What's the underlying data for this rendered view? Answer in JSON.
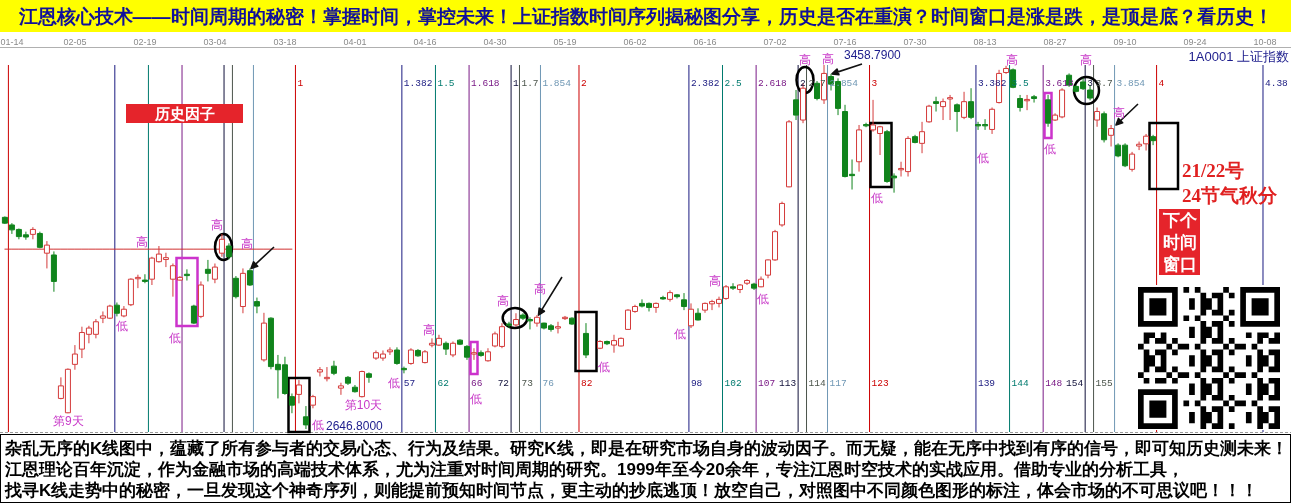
{
  "chart_data": {
    "type": "candlestick",
    "title": "江恩核心技术——时间周期的秘密！掌握时间，掌控未来！上证指数时间序列揭秘图分享，历史是否在重演？时间窗口是涨是跌，是顶是底？看历史！",
    "subtitle": "1A0001 上证指数",
    "categories": [
      null,
      "01-14",
      null,
      null,
      null,
      null,
      null,
      null,
      null,
      null,
      "02-05",
      null,
      null,
      null,
      null,
      null,
      null,
      null,
      null,
      null,
      "02-19",
      null,
      null,
      null,
      null,
      null,
      null,
      null,
      null,
      null,
      "03-04",
      null,
      null,
      null,
      null,
      null,
      null,
      null,
      null,
      null,
      "03-18",
      null,
      null,
      null,
      null,
      null,
      null,
      null,
      null,
      null,
      "04-01",
      null,
      null,
      null,
      null,
      null,
      null,
      null,
      null,
      null,
      "04-16",
      null,
      null,
      null,
      null,
      null,
      null,
      null,
      null,
      null,
      "04-30",
      null,
      null,
      null,
      null,
      null,
      null,
      null,
      null,
      null,
      "05-19",
      null,
      null,
      null,
      null,
      null,
      null,
      null,
      null,
      null,
      "06-02",
      null,
      null,
      null,
      null,
      null,
      null,
      null,
      null,
      null,
      "06-16",
      null,
      null,
      null,
      null,
      null,
      null,
      null,
      null,
      null,
      "07-02",
      null,
      null,
      null,
      null,
      null,
      null,
      null,
      null,
      null,
      "07-16",
      null,
      null,
      null,
      null,
      null,
      null,
      null,
      null,
      null,
      "07-30",
      null,
      null,
      null,
      null,
      null,
      null,
      null,
      null,
      null,
      "08-13",
      null,
      null,
      null,
      null,
      null,
      null,
      null,
      null,
      null,
      "08-27",
      null,
      null,
      null,
      null,
      null,
      null,
      null,
      null,
      null,
      "09-10",
      null,
      null,
      null,
      null,
      null,
      null,
      null,
      null,
      null,
      "09-24",
      null,
      null,
      null,
      null,
      null,
      null,
      null,
      null,
      null,
      "10-08",
      null,
      null,
      null
    ],
    "ohlc": [
      [
        3119,
        3121,
        3104,
        3106
      ],
      [
        3102,
        3106,
        3082,
        3091
      ],
      [
        3092,
        3094,
        3070,
        3076
      ],
      [
        3080,
        3087,
        3069,
        3075
      ],
      [
        3081,
        3097,
        3070,
        3092
      ],
      [
        3083,
        3087,
        3050,
        3052
      ],
      [
        3039,
        3066,
        3005,
        3057
      ],
      [
        3035,
        3043,
        2953,
        2976
      ],
      [
        2715,
        2762,
        2713,
        2743
      ],
      [
        2683,
        2782,
        2682,
        2780
      ],
      [
        2791,
        2834,
        2779,
        2814
      ],
      [
        2825,
        2875,
        2805,
        2862
      ],
      [
        2858,
        2877,
        2838,
        2872
      ],
      [
        2858,
        2892,
        2849,
        2886
      ],
      [
        2894,
        2909,
        2883,
        2899
      ],
      [
        2894,
        2924,
        2892,
        2921
      ],
      [
        2923,
        2929,
        2898,
        2905
      ],
      [
        2899,
        2921,
        2896,
        2914
      ],
      [
        2924,
        2983,
        2921,
        2981
      ],
      [
        2982,
        2991,
        2961,
        2985
      ],
      [
        2979,
        2992,
        2972,
        2976
      ],
      [
        2981,
        3031,
        2968,
        3028
      ],
      [
        3020,
        3055,
        3018,
        3037
      ],
      [
        3025,
        3040,
        3008,
        3029
      ],
      [
        2981,
        3016,
        2942,
        3011
      ],
      [
        2979,
        2988,
        2978,
        2985
      ],
      [
        2992,
        3003,
        2978,
        2989
      ],
      [
        2921,
        2924,
        2881,
        2883
      ],
      [
        2898,
        2976,
        2894,
        2968
      ],
      [
        3003,
        3024,
        2976,
        2994
      ],
      [
        2981,
        3016,
        2972,
        3008
      ],
      [
        3039,
        3082,
        3031,
        3070
      ],
      [
        3055,
        3061,
        3025,
        3031
      ],
      [
        2983,
        2988,
        2938,
        2942
      ],
      [
        2920,
        3005,
        2905,
        2994
      ],
      [
        3000,
        3005,
        2966,
        2968
      ],
      [
        2931,
        2940,
        2905,
        2921
      ],
      [
        2801,
        2906,
        2797,
        2883
      ],
      [
        2894,
        2896,
        2780,
        2786
      ],
      [
        2791,
        2812,
        2715,
        2779
      ],
      [
        2790,
        2808,
        2723,
        2726
      ],
      [
        2719,
        2726,
        2682,
        2700
      ],
      [
        2724,
        2756,
        2704,
        2745
      ],
      [
        2674,
        2698,
        2646.8,
        2656
      ],
      [
        2700,
        2723,
        2693,
        2719
      ],
      [
        2774,
        2785,
        2764,
        2779
      ],
      [
        2759,
        2785,
        2753,
        2762
      ],
      [
        2787,
        2799,
        2767,
        2771
      ],
      [
        2738,
        2750,
        2723,
        2743
      ],
      [
        2762,
        2765,
        2745,
        2749
      ],
      [
        2740,
        2745,
        2728,
        2730
      ],
      [
        2719,
        2777,
        2717,
        2775
      ],
      [
        2770,
        2773,
        2750,
        2762
      ],
      [
        2805,
        2822,
        2801,
        2817
      ],
      [
        2805,
        2822,
        2799,
        2814
      ],
      [
        2819,
        2829,
        2812,
        2823
      ],
      [
        2823,
        2829,
        2790,
        2793
      ],
      [
        2782,
        2786,
        2771,
        2779
      ],
      [
        2793,
        2827,
        2790,
        2823
      ],
      [
        2822,
        2825,
        2808,
        2810
      ],
      [
        2795,
        2823,
        2793,
        2819
      ],
      [
        2834,
        2849,
        2829,
        2838
      ],
      [
        2834,
        2857,
        2832,
        2849
      ],
      [
        2838,
        2842,
        2812,
        2825
      ],
      [
        2812,
        2842,
        2807,
        2838
      ],
      [
        2845,
        2847,
        2834,
        2836
      ],
      [
        2831,
        2834,
        2801,
        2807
      ],
      [
        2814,
        2827,
        2801,
        2817
      ],
      [
        2817,
        2822,
        2808,
        2811
      ],
      [
        2799,
        2827,
        2797,
        2819
      ],
      [
        2832,
        2864,
        2829,
        2859
      ],
      [
        2831,
        2883,
        2827,
        2875
      ],
      [
        2881,
        2886,
        2872,
        2878
      ],
      [
        2879,
        2905,
        2875,
        2891
      ],
      [
        2901,
        2905,
        2890,
        2894
      ],
      [
        2891,
        2896,
        2869,
        2888
      ],
      [
        2883,
        2901,
        2875,
        2896
      ],
      [
        2883,
        2884,
        2869,
        2872
      ],
      [
        2877,
        2881,
        2864,
        2869
      ],
      [
        2872,
        2886,
        2860,
        2875
      ],
      [
        2893,
        2899,
        2890,
        2896
      ],
      [
        2894,
        2896,
        2879,
        2881
      ],
      null,
      [
        2860,
        2883,
        2805,
        2812
      ],
      null,
      [
        2827,
        2845,
        2825,
        2842
      ],
      [
        2842,
        2844,
        2834,
        2837
      ],
      [
        2834,
        2857,
        2817,
        2844
      ],
      [
        2832,
        2851,
        2831,
        2849
      ],
      [
        2869,
        2914,
        2868,
        2912
      ],
      [
        2909,
        2924,
        2906,
        2920
      ],
      [
        2927,
        2936,
        2918,
        2921
      ],
      [
        2927,
        2929,
        2909,
        2918
      ],
      [
        2918,
        2929,
        2906,
        2927
      ],
      [
        2940,
        2944,
        2935,
        2937
      ],
      [
        2936,
        2956,
        2931,
        2951
      ],
      [
        2946,
        2948,
        2938,
        2942
      ],
      [
        2935,
        2950,
        2912,
        2920
      ],
      [
        2877,
        2927,
        2872,
        2914
      ],
      [
        2905,
        2916,
        2889,
        2890
      ],
      [
        2912,
        2929,
        2906,
        2927
      ],
      [
        2926,
        2935,
        2912,
        2931
      ],
      [
        2927,
        2942,
        2918,
        2936
      ],
      [
        2938,
        2968,
        2935,
        2964
      ],
      [
        2964,
        2972,
        2957,
        2961
      ],
      [
        2958,
        2970,
        2950,
        2968
      ],
      [
        2972,
        2981,
        2968,
        2978
      ],
      [
        2970,
        2973,
        2957,
        2961
      ],
      [
        2964,
        2987,
        2963,
        2981
      ],
      [
        2990,
        3025,
        2983,
        3024
      ],
      [
        3024,
        3091,
        3022,
        3087
      ],
      [
        3102,
        3154,
        3098,
        3150
      ],
      [
        3187,
        3336,
        3186,
        3332
      ],
      [
        3381,
        3403,
        3336,
        3347
      ],
      [
        3336,
        3418,
        3329,
        3407
      ],
      null,
      [
        3418,
        3423,
        3380,
        3384
      ],
      [
        3381,
        3458.79,
        3372,
        3440
      ],
      [
        3433,
        3439,
        3402,
        3416
      ],
      [
        3422,
        3429,
        3347,
        3362
      ],
      [
        3355,
        3370,
        3208,
        3210
      ],
      [
        3215,
        3248,
        3181,
        3212
      ],
      [
        3243,
        3325,
        3221,
        3314
      ],
      [
        3326,
        3330,
        3320,
        3323
      ],
      [
        3314,
        3381,
        3310,
        3325
      ],
      [
        3306,
        3323,
        3258,
        3321
      ],
      [
        3310,
        3314,
        3196,
        3199
      ],
      [
        3211,
        3217,
        3174,
        3207
      ],
      [
        3225,
        3243,
        3210,
        3228
      ],
      [
        3221,
        3300,
        3210,
        3295
      ],
      [
        3299,
        3303,
        3284,
        3286
      ],
      [
        3284,
        3332,
        3262,
        3310
      ],
      [
        3332,
        3370,
        3330,
        3367
      ],
      [
        3377,
        3388,
        3355,
        3373
      ],
      [
        3366,
        3384,
        3336,
        3377
      ],
      [
        3383,
        3392,
        3336,
        3386
      ],
      [
        3370,
        3373,
        3310,
        3355
      ],
      [
        3342,
        3399,
        3338,
        3377
      ],
      [
        3377,
        3407,
        3338,
        3342
      ],
      [
        3326,
        3332,
        3314,
        3323
      ],
      [
        3326,
        3338,
        3314,
        3323
      ],
      [
        3315,
        3364,
        3305,
        3360
      ],
      [
        3375,
        3448,
        3373,
        3440
      ],
      [
        3442,
        3457,
        3439,
        3451
      ],
      [
        3448,
        3451,
        3407,
        3409
      ],
      [
        3384,
        3392,
        3355,
        3364
      ],
      [
        3379,
        3392,
        3358,
        3382
      ],
      [
        3388,
        3392,
        3375,
        3384
      ],
      null,
      [
        3381,
        3392,
        3321,
        3329
      ],
      [
        3336,
        3351,
        3334,
        3347
      ],
      [
        3343,
        3407,
        3340,
        3403
      ],
      [
        3436,
        3440,
        3410,
        3414
      ],
      [
        3411,
        3414,
        3398,
        3400
      ],
      [
        3421,
        3429,
        3403,
        3406
      ],
      [
        3403,
        3414,
        3380,
        3385
      ],
      [
        3336,
        3364,
        3321,
        3355
      ],
      [
        3350,
        3355,
        3286,
        3292
      ],
      [
        3302,
        3325,
        3277,
        3317
      ],
      [
        3280,
        3284,
        3253,
        3256
      ],
      [
        3280,
        3284,
        3231,
        3234
      ],
      [
        3226,
        3265,
        3221,
        3260
      ],
      [
        3278,
        3288,
        3269,
        3282
      ],
      [
        3283,
        3305,
        3268,
        3300
      ],
      [
        3299,
        3303,
        3280,
        3290
      ],
      null,
      null,
      null,
      null,
      null,
      null,
      null,
      null,
      null,
      null,
      null,
      null,
      null,
      null,
      null,
      null,
      null,
      null,
      null
    ],
    "series": [
      {
        "type": "line",
        "color": "#d03030",
        "values": [
          3048,
          3048,
          3048,
          3048,
          3048,
          3048,
          3048,
          3048,
          3048,
          3048,
          3048,
          3048,
          3048,
          3048,
          3048,
          3048,
          3048,
          3048,
          3048,
          3048,
          3048,
          3048,
          3048,
          3048,
          3048,
          3048,
          3048,
          3048,
          3048,
          3048,
          3048,
          3048,
          3048,
          3048,
          3048,
          3048,
          3048,
          3048,
          3048,
          3048,
          3048,
          3048,
          null,
          null,
          null,
          null,
          null,
          null,
          null,
          null,
          null,
          null,
          null,
          null,
          null,
          null,
          null,
          null,
          null,
          null,
          null,
          null,
          null,
          null,
          null,
          null,
          null,
          null,
          null,
          null,
          null,
          null,
          null,
          null,
          null,
          null,
          null,
          null,
          null,
          null,
          null,
          null,
          null,
          null,
          null,
          null,
          null,
          null,
          null,
          null,
          null,
          null,
          null,
          null,
          null,
          null,
          null,
          null,
          null,
          null,
          null,
          null,
          null,
          null,
          null,
          null,
          null,
          null,
          null,
          null,
          null,
          null,
          null,
          null,
          null,
          null,
          null,
          null,
          null,
          null,
          null,
          null,
          null,
          null,
          null,
          null,
          null,
          null,
          null,
          null,
          null,
          null,
          null,
          null,
          null,
          null,
          null,
          null,
          null,
          null,
          null,
          null,
          null,
          null,
          null,
          null,
          null,
          null,
          null,
          null,
          null,
          null,
          null,
          null,
          null,
          null,
          null,
          null,
          null,
          null,
          null,
          null,
          null,
          null,
          null,
          null,
          null,
          null,
          null,
          null,
          null,
          null,
          null,
          null,
          null,
          null,
          null,
          null,
          null,
          null,
          null,
          null,
          null,
          null
        ]
      }
    ],
    "annotations": [
      "历史因子",
      "21/22号",
      "24节气秋分",
      "下个时间窗口",
      "杂乱无序的K线图中，蕴藏了所有参与者的交易心态、行为及结果。研究K线，即是在研究市场自身的波动因子。而无疑，能在无序中找到有序的信号，即可知历史测未来！",
      "江恩理论百年沉淀，作为金融市场的高端技术体系，尤为注重对时间周期的研究。1999年至今20余年，专注江恩时空技术的实战应用。借助专业的分析工具，",
      "找寻K线走势中的秘密，一旦发现这个神奇序列，则能提前预知时间节点，更主动的抄底逃顶！放空自己，对照图中不同颜色图形的标注，体会市场的不可思议吧！！！",
      "1",
      "1.382",
      "1.5",
      "1.618",
      "1",
      "1.7",
      "1.854",
      "2",
      "2.382",
      "2.5",
      "2.618",
      "2",
      "2.7",
      "2.854",
      "3",
      "3.382",
      "3.5",
      "3.618",
      "3",
      "3.7",
      "3.854",
      "4",
      "4.38",
      "57",
      "62",
      "66",
      "72",
      "73",
      "76",
      "82",
      "98",
      "102",
      "107",
      "113",
      "114",
      "117",
      "123",
      "139",
      "144",
      "148",
      "154",
      "155",
      "第9天",
      "第10天",
      "高",
      "低",
      "低",
      "高",
      {
        "text": "高",
        "y": 3005
      },
      "低",
      "低",
      "高",
      "低",
      "高",
      {
        "text": "高",
        "y": 2901
      },
      "低",
      "低",
      "高",
      "低",
      "高",
      {
        "text": "高",
        "y": 3439
      },
      "低",
      "低",
      "高",
      "低",
      "高",
      "高",
      "2646.8000",
      "3458.7900"
    ]
  }
}
